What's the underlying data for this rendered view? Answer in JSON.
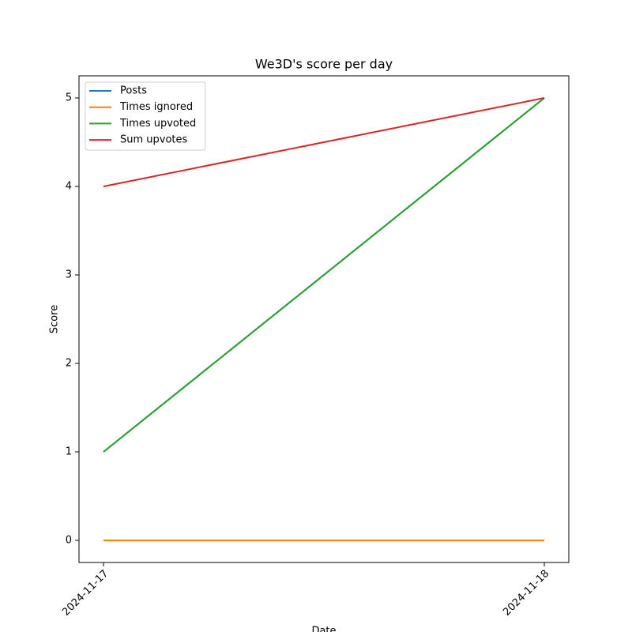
{
  "chart_data": {
    "type": "line",
    "title": "We3D's score per day",
    "xlabel": "Date",
    "ylabel": "Score",
    "x": [
      "2024-11-17",
      "2024-11-18"
    ],
    "series": [
      {
        "name": "Posts",
        "color": "#1f77b4",
        "values": [
          1,
          5
        ]
      },
      {
        "name": "Times ignored",
        "color": "#ff7f0e",
        "values": [
          0,
          0
        ]
      },
      {
        "name": "Times upvoted",
        "color": "#2ca02c",
        "values": [
          1,
          5
        ]
      },
      {
        "name": "Sum upvotes",
        "color": "#d62728",
        "values": [
          4,
          5
        ]
      }
    ],
    "ylim": [
      -0.25,
      5.25
    ],
    "yticks": [
      0,
      1,
      2,
      3,
      4,
      5
    ],
    "legend": "upper left"
  }
}
